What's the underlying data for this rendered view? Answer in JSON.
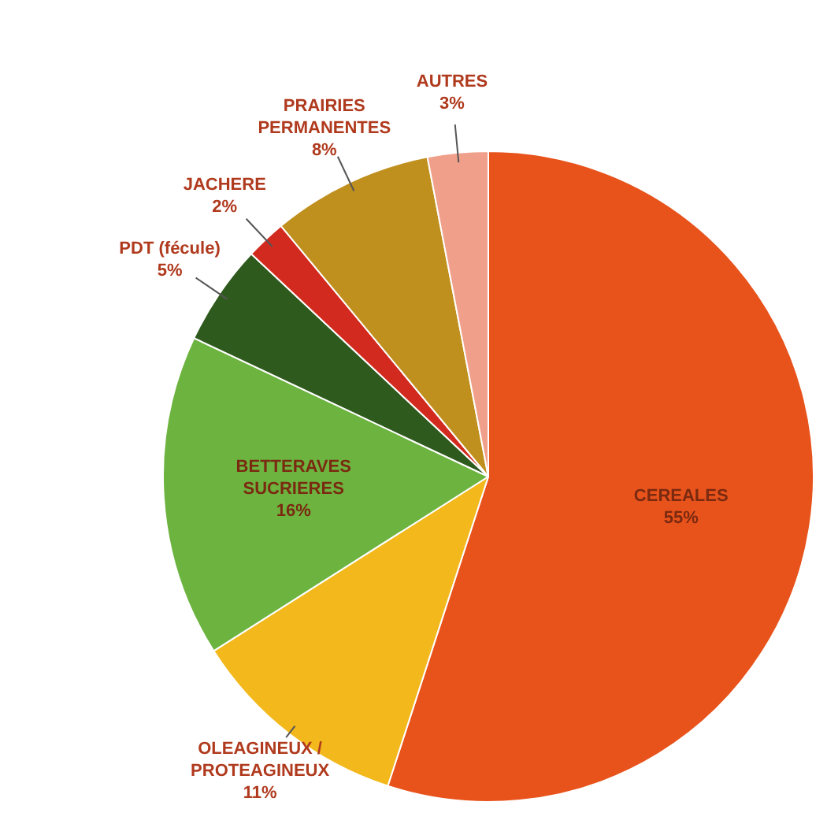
{
  "chart_data": {
    "type": "pie",
    "categories": [
      "CEREALES",
      "OLEAGINEUX / PROTEAGINEUX",
      "BETTERAVES SUCRIERES",
      "PDT (fécule)",
      "JACHERE",
      "PRAIRIES PERMANENTES",
      "AUTRES"
    ],
    "values": [
      55,
      11,
      16,
      5,
      2,
      8,
      3
    ],
    "colors": [
      "#e8531c",
      "#f2b81c",
      "#6cb33f",
      "#2f5a1e",
      "#d22a1e",
      "#c0901e",
      "#f0a08a"
    ],
    "value_labels": [
      "55%",
      "11%",
      "16%",
      "5%",
      "2%",
      "8%",
      "3%"
    ],
    "legend": false
  }
}
